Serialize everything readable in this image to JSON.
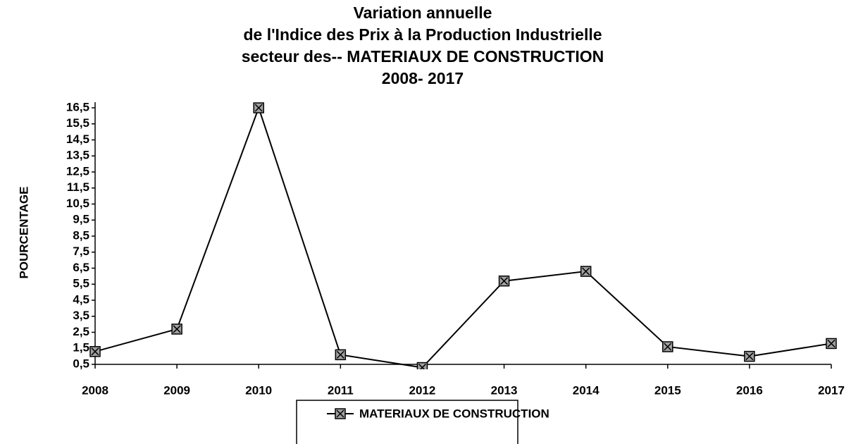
{
  "chart_data": {
    "type": "line",
    "title": [
      "Variation annuelle",
      "de l'Indice des Prix à la Production Industrielle",
      "secteur des-- MATERIAUX DE CONSTRUCTION",
      "2008- 2017"
    ],
    "y_label": "POURCENTAGE",
    "categories": [
      "2008",
      "2009",
      "2010",
      "2011",
      "2012",
      "2013",
      "2014",
      "2015",
      "2016",
      "2017"
    ],
    "series": [
      {
        "name": "MATERIAUX DE CONSTRUCTION",
        "color": "#000000",
        "values": [
          1.3,
          2.7,
          16.5,
          1.1,
          0.3,
          5.7,
          6.3,
          1.6,
          1.0,
          1.8
        ]
      }
    ],
    "ylim": [
      0.5,
      16.5
    ],
    "yticks": [
      {
        "value": 0.5,
        "label": "0,5"
      },
      {
        "value": 1.5,
        "label": "1,5"
      },
      {
        "value": 2.5,
        "label": "2,5"
      },
      {
        "value": 3.5,
        "label": "3,5"
      },
      {
        "value": 4.5,
        "label": "4,5"
      },
      {
        "value": 5.5,
        "label": "5,5"
      },
      {
        "value": 6.5,
        "label": "6,5"
      },
      {
        "value": 7.5,
        "label": "7,5"
      },
      {
        "value": 8.5,
        "label": "8,5"
      },
      {
        "value": 9.5,
        "label": "9,5"
      },
      {
        "value": 10.5,
        "label": "10,5"
      },
      {
        "value": 11.5,
        "label": "11,5"
      },
      {
        "value": 12.5,
        "label": "12,5"
      },
      {
        "value": 13.5,
        "label": "13,5"
      },
      {
        "value": 14.5,
        "label": "14,5"
      },
      {
        "value": 15.5,
        "label": "15,5"
      },
      {
        "value": 16.5,
        "label": "16,5"
      }
    ],
    "legend": "bottom"
  }
}
